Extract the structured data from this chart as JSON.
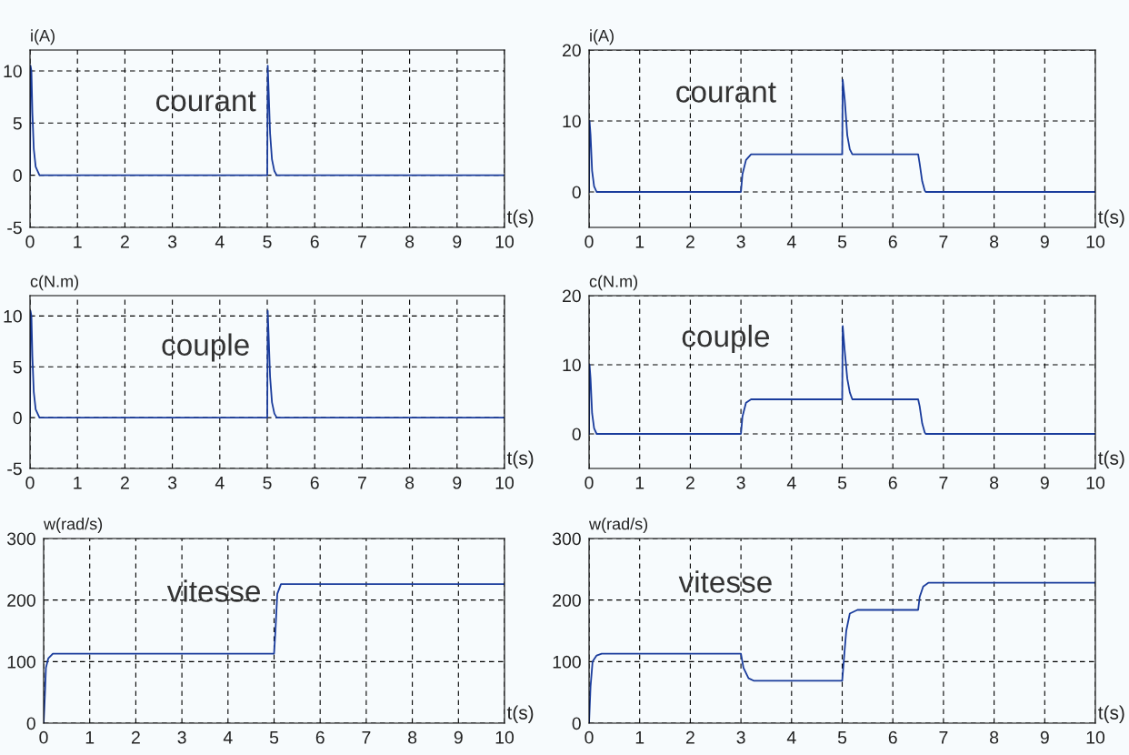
{
  "chart_data": [
    {
      "type": "line",
      "xlabel": "t(s)",
      "ylabel": "i(A)",
      "annotations": [
        "courant"
      ],
      "xlim": [
        0,
        10
      ],
      "ylim": [
        -5,
        12
      ],
      "xticks": [
        0,
        1,
        2,
        3,
        4,
        5,
        6,
        7,
        8,
        9,
        10
      ],
      "yticks": [
        -5,
        0,
        5,
        10
      ],
      "grid": true,
      "line_style": "solid",
      "marker": "none",
      "series": [
        {
          "color": "#1a3c9c",
          "x": [
            0,
            0.01,
            0.03,
            0.05,
            0.08,
            0.12,
            0.2,
            5,
            5.01,
            5.03,
            5.06,
            5.1,
            5.15,
            5.2,
            10
          ],
          "values": [
            0,
            10.5,
            10,
            6,
            2.5,
            0.8,
            0,
            0,
            10.5,
            8,
            4,
            1.5,
            0.4,
            0,
            0
          ]
        }
      ]
    },
    {
      "type": "line",
      "xlabel": "t(s)",
      "ylabel": "i(A)",
      "annotations": [
        "courant"
      ],
      "xlim": [
        0,
        10
      ],
      "ylim": [
        -5,
        20
      ],
      "xticks": [
        0,
        1,
        2,
        3,
        4,
        5,
        6,
        7,
        8,
        9,
        10
      ],
      "yticks": [
        0,
        10,
        20
      ],
      "grid": true,
      "line_style": "solid",
      "marker": "none",
      "series": [
        {
          "color": "#1a3c9c",
          "x": [
            0,
            0.01,
            0.03,
            0.06,
            0.1,
            0.15,
            3,
            3.03,
            3.1,
            3.2,
            5,
            5.01,
            5.05,
            5.1,
            5.15,
            5.2,
            6.5,
            6.53,
            6.58,
            6.63,
            6.65,
            10
          ],
          "values": [
            0,
            10,
            8,
            3,
            0.8,
            0,
            0,
            2.5,
            4.5,
            5.3,
            5.3,
            15.8,
            13,
            8,
            6,
            5.3,
            5.3,
            4,
            1.5,
            0.2,
            0,
            0
          ]
        }
      ]
    },
    {
      "type": "line",
      "xlabel": "t(s)",
      "ylabel": "c(N.m)",
      "annotations": [
        "couple"
      ],
      "xlim": [
        0,
        10
      ],
      "ylim": [
        -5,
        12
      ],
      "xticks": [
        0,
        1,
        2,
        3,
        4,
        5,
        6,
        7,
        8,
        9,
        10
      ],
      "yticks": [
        -5,
        0,
        5,
        10
      ],
      "grid": true,
      "line_style": "solid",
      "marker": "none",
      "series": [
        {
          "color": "#1a3c9c",
          "x": [
            0,
            0.01,
            0.03,
            0.05,
            0.08,
            0.12,
            0.2,
            5,
            5.01,
            5.03,
            5.06,
            5.1,
            5.15,
            5.2,
            10
          ],
          "values": [
            0,
            10.5,
            10,
            6,
            2.5,
            0.8,
            0,
            0,
            10.5,
            8,
            4,
            1.5,
            0.4,
            0,
            0
          ]
        }
      ]
    },
    {
      "type": "line",
      "xlabel": "t(s)",
      "ylabel": "c(N.m)",
      "annotations": [
        "couple"
      ],
      "xlim": [
        0,
        10
      ],
      "ylim": [
        -5,
        20
      ],
      "xticks": [
        0,
        1,
        2,
        3,
        4,
        5,
        6,
        7,
        8,
        9,
        10
      ],
      "yticks": [
        0,
        10,
        20
      ],
      "grid": true,
      "line_style": "solid",
      "marker": "none",
      "series": [
        {
          "color": "#1a3c9c",
          "x": [
            0,
            0.01,
            0.03,
            0.06,
            0.1,
            0.15,
            3,
            3.03,
            3.1,
            3.2,
            5,
            5.01,
            5.05,
            5.1,
            5.15,
            5.2,
            6.5,
            6.53,
            6.58,
            6.63,
            6.65,
            10
          ],
          "values": [
            0,
            10,
            8,
            3,
            0.8,
            0,
            0,
            2.5,
            4.5,
            5,
            5,
            15.6,
            12,
            8,
            6,
            5,
            5,
            4,
            1.5,
            0.2,
            0,
            0
          ]
        }
      ]
    },
    {
      "type": "line",
      "xlabel": "t(s)",
      "ylabel": "w(rad/s)",
      "annotations": [
        "vitesse"
      ],
      "xlim": [
        0,
        10
      ],
      "ylim": [
        0,
        300
      ],
      "xticks": [
        0,
        1,
        2,
        3,
        4,
        5,
        6,
        7,
        8,
        9,
        10
      ],
      "yticks": [
        0,
        100,
        200,
        300
      ],
      "grid": true,
      "line_style": "solid",
      "marker": "none",
      "series": [
        {
          "color": "#1a3c9c",
          "x": [
            0,
            0.03,
            0.05,
            0.1,
            0.2,
            5,
            5.03,
            5.07,
            5.15,
            10
          ],
          "values": [
            0,
            50,
            90,
            105,
            113,
            113,
            150,
            210,
            226,
            226
          ]
        }
      ]
    },
    {
      "type": "line",
      "xlabel": "t(s)",
      "ylabel": "w(rad/s)",
      "annotations": [
        "vitesse"
      ],
      "xlim": [
        0,
        10
      ],
      "ylim": [
        0,
        300
      ],
      "xticks": [
        0,
        1,
        2,
        3,
        4,
        5,
        6,
        7,
        8,
        9,
        10
      ],
      "yticks": [
        0,
        100,
        200,
        300
      ],
      "grid": true,
      "line_style": "solid",
      "marker": "none",
      "series": [
        {
          "color": "#1a3c9c",
          "x": [
            0,
            0.03,
            0.07,
            0.15,
            0.25,
            3,
            3.05,
            3.15,
            3.25,
            5,
            5.03,
            5.08,
            5.15,
            5.3,
            6.5,
            6.53,
            6.6,
            6.7,
            10
          ],
          "values": [
            0,
            60,
            100,
            110,
            113,
            113,
            90,
            73,
            69,
            69,
            100,
            150,
            178,
            184,
            184,
            205,
            222,
            228,
            228
          ]
        }
      ]
    }
  ]
}
